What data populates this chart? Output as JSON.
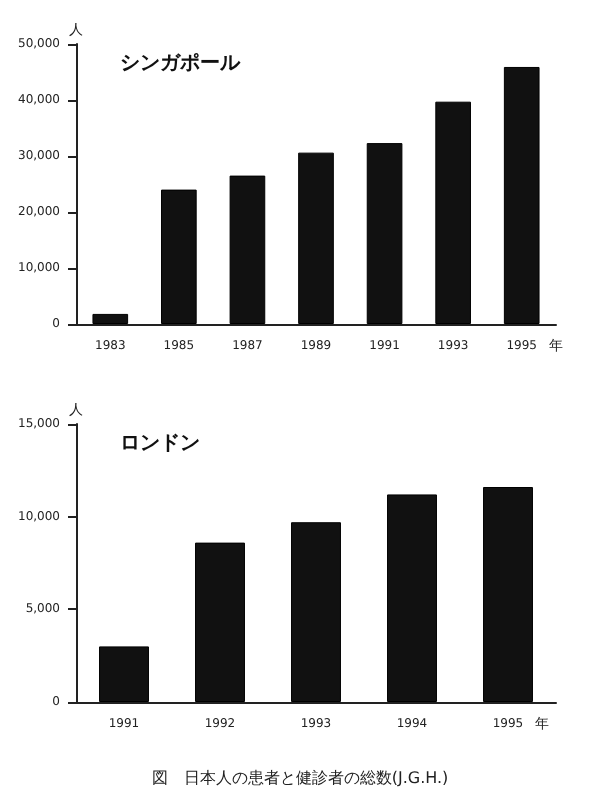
{
  "chart_data": [
    {
      "type": "bar",
      "title": "シンガポール",
      "ylabel": "人",
      "xlabel": "年",
      "categories": [
        "1983",
        "1985",
        "1987",
        "1989",
        "1991",
        "1993",
        "1995"
      ],
      "series": [
        {
          "color": "#111111",
          "values": [
            1800,
            24000,
            26500,
            30600,
            32300,
            39700,
            45900
          ]
        }
      ],
      "ylim": [
        0,
        50000
      ],
      "yticks": [
        0,
        {
          "value": 10000,
          "label": "10,000"
        },
        {
          "value": 20000,
          "label": "20,000"
        },
        {
          "value": 30000,
          "label": "30,000"
        },
        {
          "value": 40000,
          "label": "40,000"
        },
        {
          "value": 50000,
          "label": "50,000"
        }
      ],
      "grid": false
    },
    {
      "type": "bar",
      "title": "ロンドン",
      "ylabel": "人",
      "xlabel": "年",
      "categories": [
        "1991",
        "1992",
        "1993",
        "1994",
        "1995"
      ],
      "series": [
        {
          "color": "#111111",
          "values": [
            3000,
            8600,
            9700,
            11200,
            11600
          ]
        }
      ],
      "ylim": [
        0,
        15000
      ],
      "yticks": [
        0,
        {
          "value": 5000,
          "label": "5,000"
        },
        {
          "value": 10000,
          "label": "10,000"
        },
        {
          "value": 15000,
          "label": "15,000"
        }
      ],
      "grid": false,
      "annotations": [
        "図　日本人の患者と健診者の総数(J.G.H.)"
      ]
    }
  ]
}
